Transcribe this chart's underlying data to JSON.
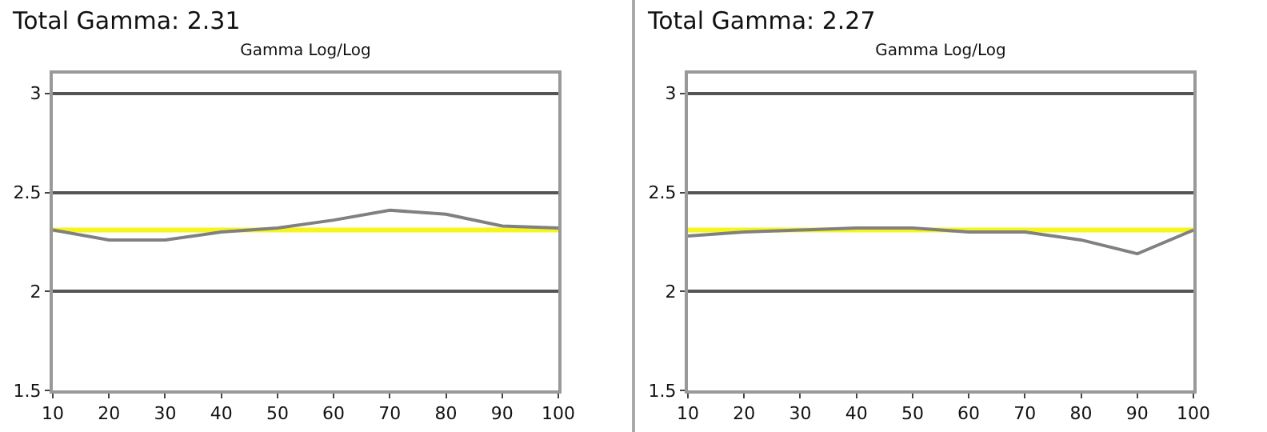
{
  "chart_data": [
    {
      "type": "line",
      "title": "Total Gamma: 2.31",
      "subtitle": "Gamma Log/Log",
      "x": [
        10,
        20,
        30,
        40,
        50,
        60,
        70,
        80,
        90,
        100
      ],
      "series": [
        {
          "color": "#808080",
          "values": [
            2.31,
            2.26,
            2.26,
            2.3,
            2.32,
            2.36,
            2.41,
            2.39,
            2.33,
            2.32
          ]
        }
      ],
      "ref_lines": [
        {
          "axis": "y",
          "value": 2.31,
          "color": "#f5f520"
        }
      ],
      "xlim": [
        10,
        100
      ],
      "xticks": [
        10,
        20,
        30,
        40,
        50,
        60,
        70,
        80,
        90,
        100
      ],
      "ylim": [
        1.5,
        3.1
      ],
      "yticks": [
        1.5,
        2,
        2.5,
        3
      ],
      "grid": "y",
      "marker": "none",
      "line_style": "solid",
      "legend": false
    },
    {
      "type": "line",
      "title": "Total Gamma: 2.27",
      "subtitle": "Gamma Log/Log",
      "x": [
        10,
        20,
        30,
        40,
        50,
        60,
        70,
        80,
        90,
        100
      ],
      "series": [
        {
          "color": "#808080",
          "values": [
            2.28,
            2.3,
            2.31,
            2.32,
            2.32,
            2.3,
            2.3,
            2.26,
            2.19,
            2.31
          ]
        }
      ],
      "ref_lines": [
        {
          "axis": "y",
          "value": 2.31,
          "color": "#f5f520"
        }
      ],
      "xlim": [
        10,
        100
      ],
      "xticks": [
        10,
        20,
        30,
        40,
        50,
        60,
        70,
        80,
        90,
        100
      ],
      "ylim": [
        1.5,
        3.1
      ],
      "yticks": [
        1.5,
        2,
        2.5,
        3
      ],
      "grid": "y",
      "marker": "none",
      "line_style": "solid",
      "legend": false
    }
  ]
}
